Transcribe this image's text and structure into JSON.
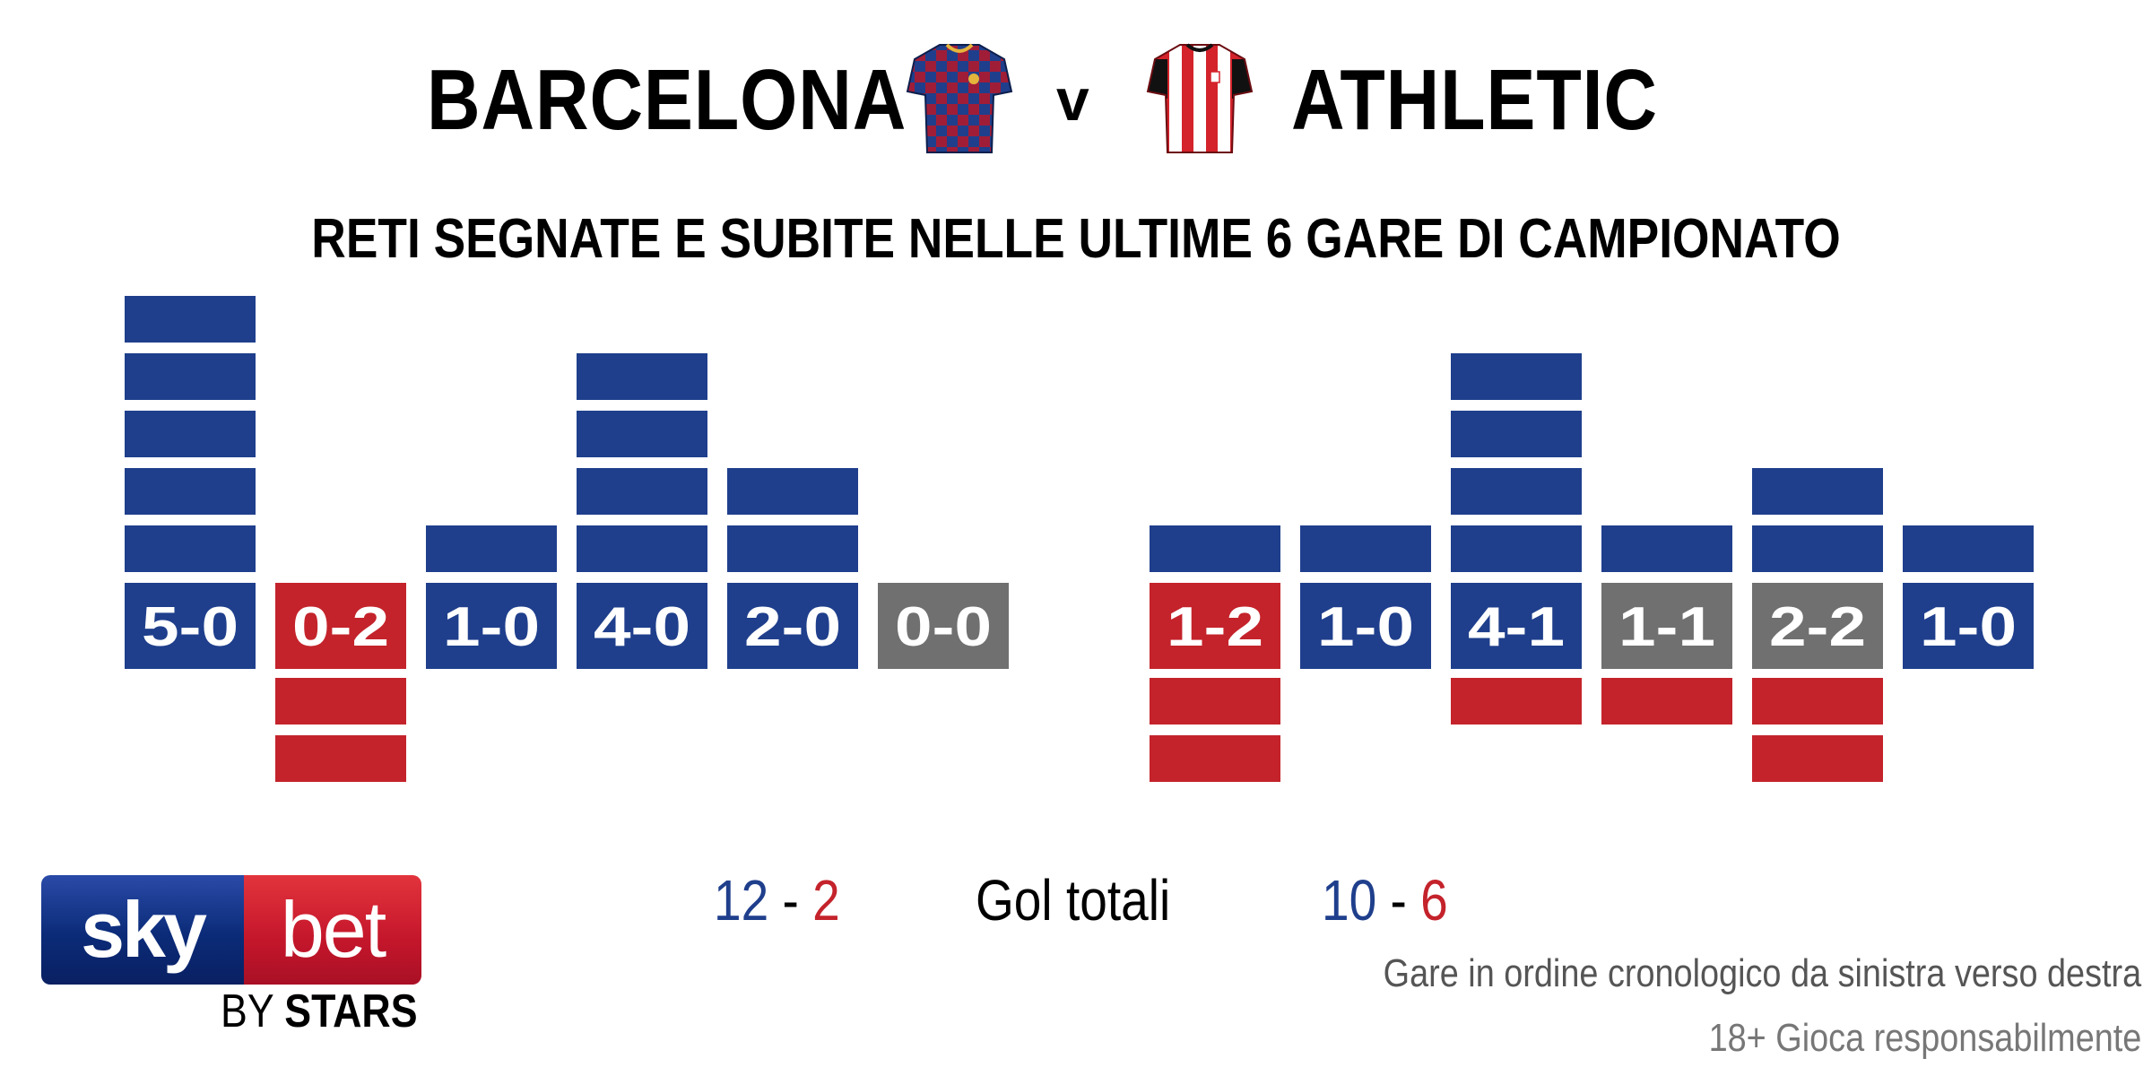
{
  "header": {
    "home_team": "BARCELONA",
    "vs": "v",
    "away_team": "ATHLETIC",
    "subtitle": "RETI SEGNATE E SUBITE NELLE ULTIME 6 GARE DI CAMPIONATO"
  },
  "kits": {
    "home": {
      "icon": "barcelona-kit-icon",
      "colors": [
        "#1f3f8c",
        "#a01d38"
      ]
    },
    "away": {
      "icon": "athletic-kit-icon",
      "colors": [
        "#d4232b",
        "#ffffff",
        "#111111"
      ]
    }
  },
  "chart_data": {
    "type": "bar",
    "description_units": "goals per match; blocks above = goals scored, blocks below = goals conceded",
    "colors": {
      "win": "#1f3f8c",
      "loss": "#c4232b",
      "draw": "#707070",
      "scored": "#1f3f8c",
      "conceded": "#c4232b"
    },
    "teams": [
      {
        "name": "BARCELONA",
        "matches": [
          {
            "score": "5-0",
            "scored": 5,
            "conceded": 0,
            "result": "win"
          },
          {
            "score": "0-2",
            "scored": 0,
            "conceded": 2,
            "result": "loss"
          },
          {
            "score": "1-0",
            "scored": 1,
            "conceded": 0,
            "result": "win"
          },
          {
            "score": "4-0",
            "scored": 4,
            "conceded": 0,
            "result": "win"
          },
          {
            "score": "2-0",
            "scored": 2,
            "conceded": 0,
            "result": "win"
          },
          {
            "score": "0-0",
            "scored": 0,
            "conceded": 0,
            "result": "draw"
          }
        ]
      },
      {
        "name": "ATHLETIC",
        "matches": [
          {
            "score": "1-2",
            "scored": 1,
            "conceded": 2,
            "result": "loss"
          },
          {
            "score": "1-0",
            "scored": 1,
            "conceded": 0,
            "result": "win"
          },
          {
            "score": "4-1",
            "scored": 4,
            "conceded": 1,
            "result": "win"
          },
          {
            "score": "1-1",
            "scored": 1,
            "conceded": 1,
            "result": "draw"
          },
          {
            "score": "2-2",
            "scored": 2,
            "conceded": 2,
            "result": "draw"
          },
          {
            "score": "1-0",
            "scored": 1,
            "conceded": 0,
            "result": "win"
          }
        ]
      }
    ]
  },
  "totals": {
    "label": "Gol totali",
    "home": {
      "scored": "12",
      "sep": "-",
      "conceded": "2"
    },
    "away": {
      "scored": "10",
      "sep": "-",
      "conceded": "6"
    }
  },
  "footer": {
    "note": "Gare in ordine cronologico da sinistra verso destra",
    "responsible": "18+ Gioca responsabilmente"
  },
  "logo": {
    "sky": "sky",
    "bet": "bet",
    "by": "BY",
    "stars": "STARS"
  }
}
